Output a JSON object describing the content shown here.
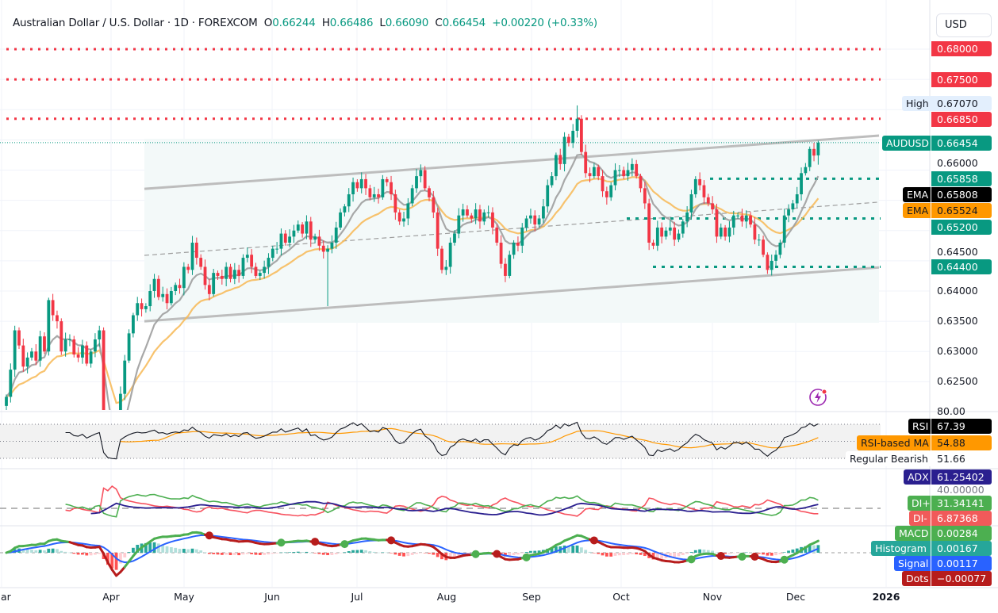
{
  "header": {
    "title": "Australian Dollar / U.S. Dollar · 1D · FOREXCOM",
    "o_label": "O",
    "o": "0.66244",
    "h_label": "H",
    "h": "0.66486",
    "l_label": "L",
    "l": "0.66090",
    "c_label": "C",
    "c": "0.66454",
    "change": "+0.00220 (+0.33%)"
  },
  "currency_button": "USD",
  "colors": {
    "up": "#089981",
    "down": "#f23645",
    "ema_fast": "#9e9e9e",
    "ema_slow": "#f7b955",
    "level_red": "#f23645",
    "level_green": "#089981"
  },
  "price_axis": {
    "ticks": [
      "0.66000",
      "0.64500",
      "0.64000",
      "0.63500",
      "0.63000",
      "0.62500"
    ],
    "tick_values": [
      0.66,
      0.645,
      0.64,
      0.635,
      0.63,
      0.625
    ],
    "labels": {
      "l680": "0.68000",
      "l675": "0.67500",
      "high_name": "High",
      "high": "0.67070",
      "l6685": "0.66850",
      "symbol_name": "AUDUSD",
      "last": "0.66454",
      "l65858": "0.65858",
      "ema1_name": "EMA",
      "ema1": "0.65808",
      "ema2_name": "EMA",
      "ema2": "0.65524",
      "l652": "0.65200",
      "l644": "0.64400"
    }
  },
  "indicators": {
    "rsi_top": "80.00",
    "rsi_name": "RSI",
    "rsi": "67.39",
    "rsi_ma_name": "RSI-based MA",
    "rsi_ma": "54.88",
    "div_name": "Regular Bearish",
    "div": "51.66",
    "adx_name": "ADX",
    "adx": "61.25402",
    "adx_tick": "40.00000",
    "dip_name": "DI+",
    "dip": "31.34141",
    "dim_name": "DI-",
    "dim": "6.87368",
    "macd_name": "MACD",
    "macd": "0.00284",
    "hist_name": "Histogram",
    "hist": "0.00167",
    "signal_name": "Signal",
    "signal": "0.00117",
    "dots_name": "Dots",
    "dots": "−0.00077"
  },
  "time_axis": [
    "Mar",
    "Apr",
    "May",
    "Jun",
    "Jul",
    "Aug",
    "Sep",
    "Oct",
    "Nov",
    "Dec",
    "2026"
  ],
  "chart_data": {
    "type": "candlestick",
    "symbol": "AUDUSD",
    "interval": "1D",
    "last_bar": {
      "open": 0.66244,
      "high": 0.66486,
      "low": 0.6609,
      "close": 0.66454
    },
    "close": [
      0.6225,
      0.627,
      0.6335,
      0.631,
      0.6275,
      0.629,
      0.63,
      0.6285,
      0.6325,
      0.63,
      0.6385,
      0.636,
      0.635,
      0.63,
      0.632,
      0.632,
      0.6295,
      0.629,
      0.631,
      0.628,
      0.63,
      0.632,
      0.6335,
      0.612,
      0.602,
      0.6,
      0.599,
      0.623,
      0.6285,
      0.633,
      0.636,
      0.638,
      0.637,
      0.6375,
      0.64,
      0.642,
      0.639,
      0.6395,
      0.638,
      0.64,
      0.641,
      0.6405,
      0.644,
      0.6435,
      0.648,
      0.6455,
      0.644,
      0.641,
      0.6395,
      0.643,
      0.6425,
      0.642,
      0.644,
      0.642,
      0.6435,
      0.6425,
      0.6455,
      0.646,
      0.644,
      0.6425,
      0.643,
      0.644,
      0.6455,
      0.647,
      0.647,
      0.6495,
      0.648,
      0.649,
      0.65,
      0.651,
      0.6495,
      0.6515,
      0.6485,
      0.649,
      0.6475,
      0.6465,
      0.647,
      0.648,
      0.6505,
      0.653,
      0.654,
      0.656,
      0.658,
      0.657,
      0.6585,
      0.657,
      0.6555,
      0.656,
      0.6555,
      0.6585,
      0.658,
      0.656,
      0.653,
      0.6515,
      0.652,
      0.6545,
      0.657,
      0.659,
      0.66,
      0.657,
      0.6555,
      0.653,
      0.647,
      0.6435,
      0.644,
      0.648,
      0.6495,
      0.6525,
      0.6535,
      0.6525,
      0.652,
      0.6535,
      0.6515,
      0.653,
      0.653,
      0.6505,
      0.648,
      0.6445,
      0.6425,
      0.646,
      0.648,
      0.6475,
      0.6505,
      0.652,
      0.6525,
      0.651,
      0.652,
      0.654,
      0.6575,
      0.659,
      0.6625,
      0.661,
      0.6655,
      0.6645,
      0.6665,
      0.6685,
      0.663,
      0.6595,
      0.659,
      0.6605,
      0.659,
      0.6565,
      0.6555,
      0.6575,
      0.66,
      0.66,
      0.659,
      0.66,
      0.661,
      0.659,
      0.657,
      0.6545,
      0.648,
      0.6475,
      0.6505,
      0.649,
      0.65,
      0.6505,
      0.6485,
      0.6495,
      0.6515,
      0.653,
      0.656,
      0.6585,
      0.6575,
      0.6555,
      0.6545,
      0.6535,
      0.649,
      0.6505,
      0.649,
      0.6505,
      0.6525,
      0.6525,
      0.6515,
      0.6525,
      0.651,
      0.6485,
      0.6485,
      0.646,
      0.6435,
      0.645,
      0.646,
      0.648,
      0.6525,
      0.6535,
      0.6545,
      0.656,
      0.6595,
      0.6605,
      0.6635,
      0.6624,
      0.66454
    ],
    "horizontal_levels": [
      {
        "price": 0.68,
        "color": "red"
      },
      {
        "price": 0.675,
        "color": "red"
      },
      {
        "price": 0.6685,
        "color": "red"
      },
      {
        "price": 0.65858,
        "color": "green"
      },
      {
        "price": 0.652,
        "color": "green"
      },
      {
        "price": 0.644,
        "color": "green"
      }
    ],
    "channel": {
      "upper": [
        0.6569,
        0.6657
      ],
      "middle": [
        0.6459,
        0.6547
      ],
      "lower": [
        0.635,
        0.6439
      ]
    },
    "ema_values": [
      0.65808,
      0.65524
    ],
    "high": 0.6707,
    "rsi_levels": [
      70,
      50,
      30
    ],
    "adx_level": 20,
    "grid": true
  }
}
